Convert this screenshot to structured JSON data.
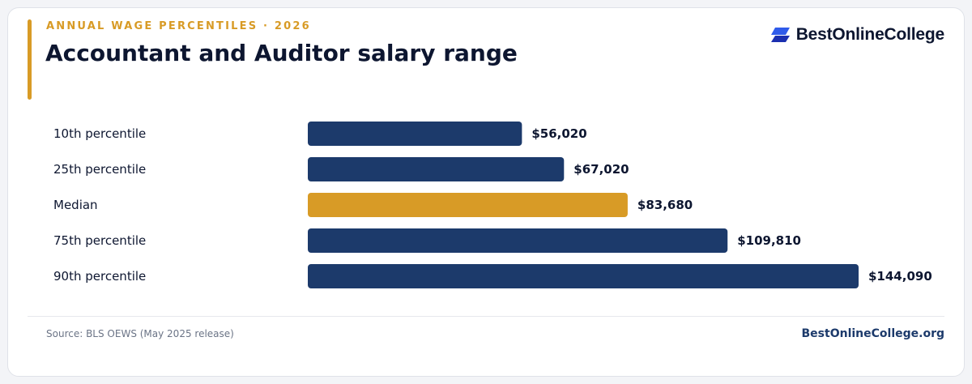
{
  "header": {
    "eyebrow": "ANNUAL WAGE PERCENTILES · 2026",
    "title": "Accountant and Auditor salary range"
  },
  "brand": {
    "logo_text": "BestOnlineCollege",
    "logo_icon": "double-parallelogram-icon",
    "site": "BestOnlineCollege.org"
  },
  "footer": {
    "source": "Source: BLS OEWS (May 2025 release)"
  },
  "colors": {
    "accent": "#d89b26",
    "bar": "#1c3a6b",
    "highlight": "#d89b26",
    "text": "#0d1630",
    "muted": "#6b7486",
    "logo_blue": "#2f5bea",
    "logo_dark": "#1b2fb0"
  },
  "chart_data": {
    "type": "bar",
    "orientation": "horizontal",
    "categories": [
      "10th percentile",
      "25th percentile",
      "Median",
      "75th percentile",
      "90th percentile"
    ],
    "values": [
      56020,
      67020,
      83680,
      109810,
      144090
    ],
    "value_labels": [
      "$56,020",
      "$67,020",
      "$83,680",
      "$109,810",
      "$144,090"
    ],
    "highlight_category": "Median",
    "xlim": [
      0,
      144090
    ],
    "grid": false,
    "legend": "none"
  }
}
